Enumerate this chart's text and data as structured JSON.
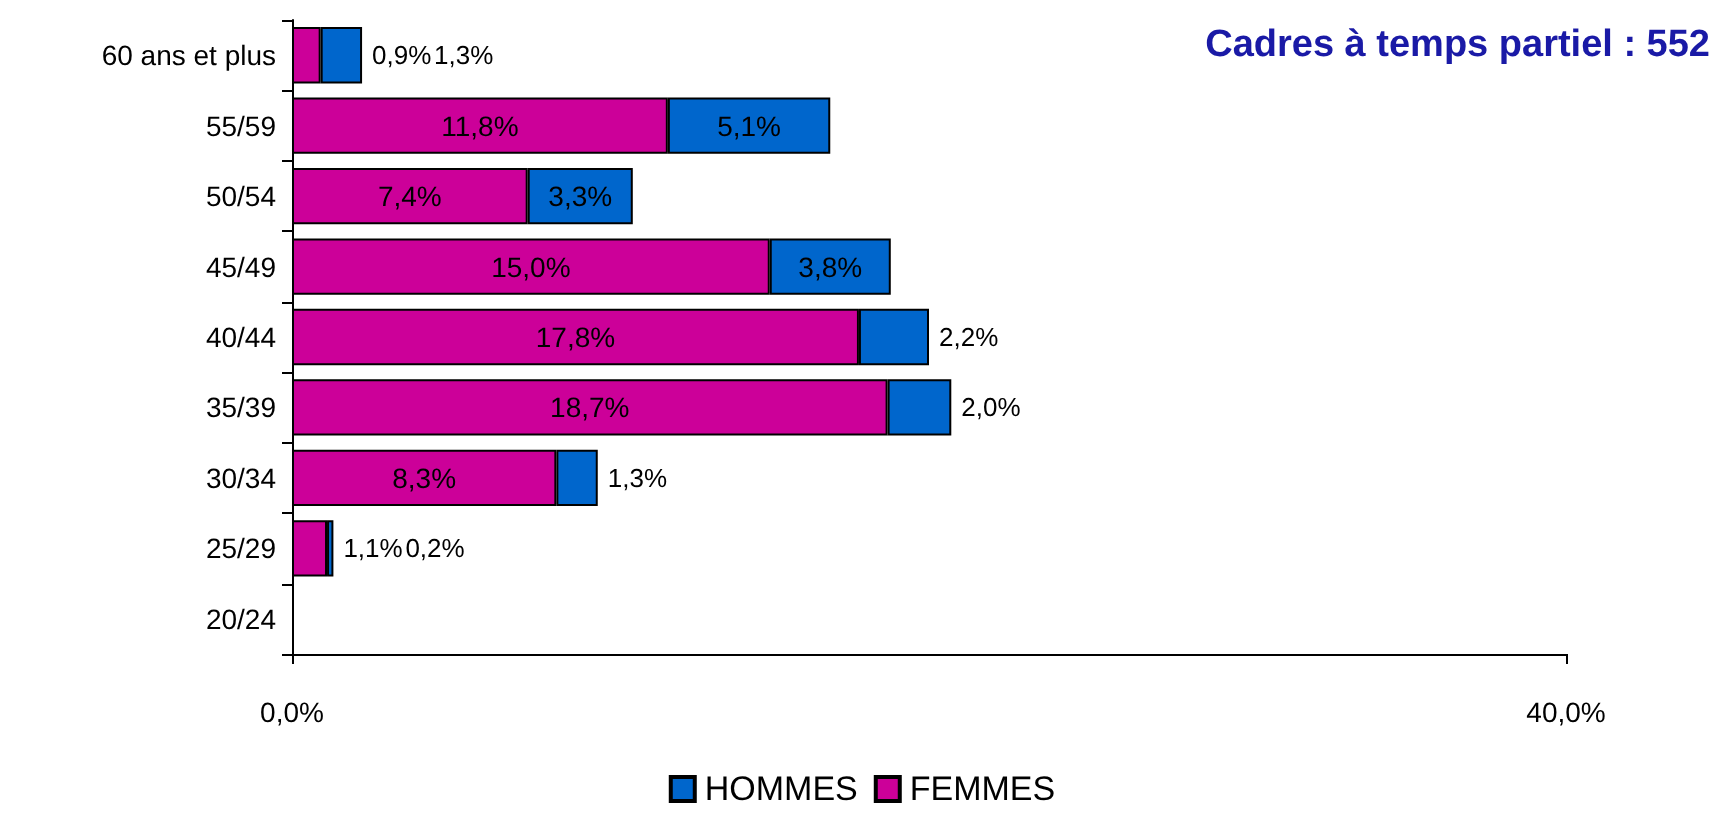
{
  "chart_data": {
    "type": "bar",
    "orientation": "horizontal",
    "stacked": true,
    "title": "Cadres à temps partiel : 552",
    "categories": [
      "60 ans et plus",
      "55/59",
      "50/54",
      "45/49",
      "40/44",
      "35/39",
      "30/34",
      "25/29",
      "20/24"
    ],
    "series": [
      {
        "name": "FEMMES",
        "color": "#cc0099",
        "values": [
          0.9,
          11.8,
          7.4,
          15.0,
          17.8,
          18.7,
          8.3,
          1.1,
          null
        ],
        "value_labels": [
          "0,9%",
          "11,8%",
          "7,4%",
          "15,0%",
          "17,8%",
          "18,7%",
          "8,3%",
          "1,1%",
          null
        ]
      },
      {
        "name": "HOMMES",
        "color": "#0066cc",
        "values": [
          1.3,
          5.1,
          3.3,
          3.8,
          2.2,
          2.0,
          1.3,
          0.2,
          null
        ],
        "value_labels": [
          "1,3%",
          "5,1%",
          "3,3%",
          "3,8%",
          "2,2%",
          "2,0%",
          "1,3%",
          "0,2%",
          null
        ]
      }
    ],
    "xlim": [
      0,
      40
    ],
    "xticks": [
      {
        "value": 0,
        "label": "0,0%"
      },
      {
        "value": 40,
        "label": "40,0%"
      }
    ],
    "grid": false,
    "legend": "bottom"
  }
}
